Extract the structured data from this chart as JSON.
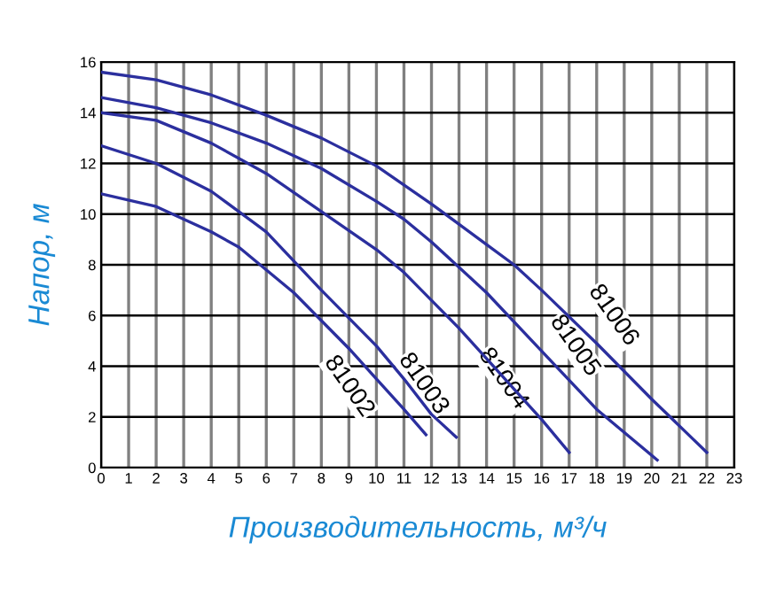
{
  "chart_data": {
    "type": "line",
    "xlabel": "Производительность, м³/ч",
    "ylabel": "Напор, м",
    "xlim": [
      0,
      23
    ],
    "xticks": [
      0,
      1,
      2,
      3,
      4,
      5,
      6,
      7,
      8,
      9,
      10,
      11,
      12,
      13,
      14,
      15,
      16,
      17,
      18,
      19,
      20,
      21,
      22,
      23
    ],
    "ylim": [
      0,
      16
    ],
    "yticks": [
      0,
      2,
      4,
      6,
      8,
      10,
      12,
      14,
      16
    ],
    "grid": true,
    "marker": "none",
    "line_style": "solid",
    "series": [
      {
        "color": "#2b2f9e",
        "x": [
          0,
          2,
          4,
          5,
          6,
          7,
          8,
          9,
          10,
          11,
          11.8
        ],
        "values": [
          10.8,
          10.3,
          9.3,
          8.7,
          7.8,
          6.9,
          5.8,
          4.7,
          3.5,
          2.3,
          1.3
        ]
      },
      {
        "color": "#2b2f9e",
        "x": [
          0,
          2,
          4,
          6,
          8,
          9,
          10,
          11,
          12,
          12.9
        ],
        "values": [
          12.7,
          12.0,
          10.9,
          9.3,
          7.0,
          5.9,
          4.8,
          3.5,
          2.1,
          1.2
        ]
      },
      {
        "color": "#2b2f9e",
        "x": [
          0,
          2,
          4,
          6,
          8,
          10,
          11,
          12,
          13,
          14,
          15,
          16,
          17
        ],
        "values": [
          14.0,
          13.7,
          12.8,
          11.6,
          10.1,
          8.6,
          7.7,
          6.6,
          5.5,
          4.3,
          3.1,
          1.9,
          0.6
        ]
      },
      {
        "color": "#2b2f9e",
        "x": [
          0,
          2,
          4,
          6,
          8,
          10,
          11,
          12,
          14,
          16,
          18,
          20.2
        ],
        "values": [
          14.6,
          14.2,
          13.6,
          12.8,
          11.8,
          10.5,
          9.8,
          8.9,
          6.9,
          4.6,
          2.3,
          0.3
        ]
      },
      {
        "color": "#2b2f9e",
        "x": [
          0,
          2,
          4,
          6,
          8,
          10,
          12,
          14,
          15,
          16,
          18,
          20,
          22
        ],
        "values": [
          15.6,
          15.3,
          14.7,
          13.9,
          13.0,
          11.9,
          10.4,
          8.8,
          8.0,
          7.0,
          4.9,
          2.7,
          0.6
        ]
      }
    ],
    "annotations": [
      {
        "text": "81002",
        "x": 9.0,
        "y": 3.2
      },
      {
        "text": "81003",
        "x": 11.7,
        "y": 3.3
      },
      {
        "text": "81004",
        "x": 14.6,
        "y": 3.5
      },
      {
        "text": "81005",
        "x": 17.2,
        "y": 4.8
      },
      {
        "text": "81006",
        "x": 18.6,
        "y": 6.0
      }
    ]
  }
}
